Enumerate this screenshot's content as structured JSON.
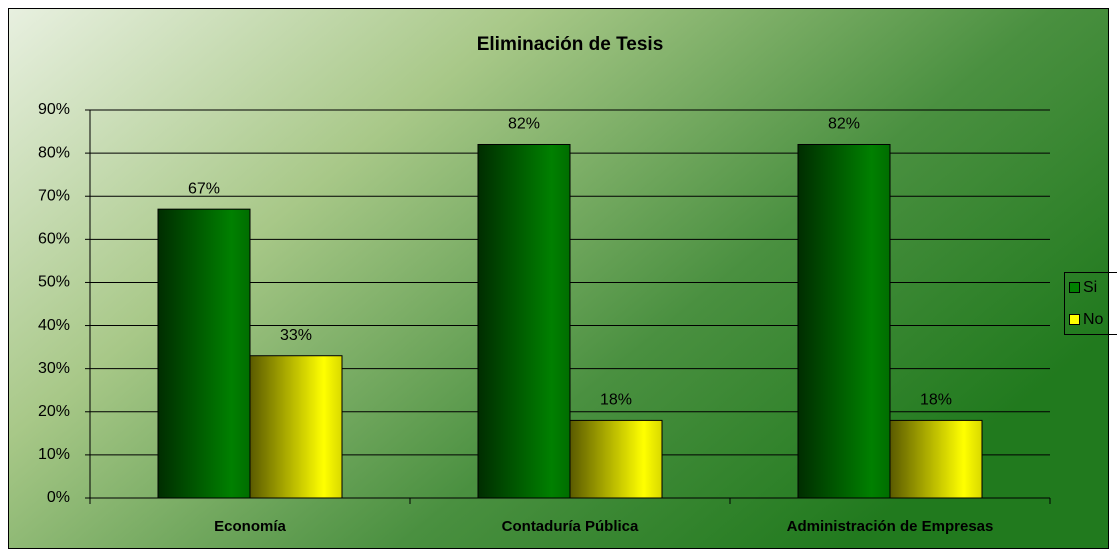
{
  "chart_data": {
    "type": "bar",
    "title": "Eliminación de Tesis",
    "categories": [
      "Economía",
      "Contaduría Pública",
      "Administración de Empresas"
    ],
    "series": [
      {
        "name": "Si",
        "color": "#008000",
        "values": [
          67,
          82,
          82
        ],
        "value_labels": [
          "67%",
          "82%",
          "82%"
        ]
      },
      {
        "name": "No",
        "color": "#ffff00",
        "values": [
          33,
          18,
          18
        ],
        "value_labels": [
          "33%",
          "18%",
          "18%"
        ]
      }
    ],
    "ylim": [
      0,
      90
    ],
    "yticks": [
      {
        "value": 0,
        "label": "0%"
      },
      {
        "value": 10,
        "label": "10%"
      },
      {
        "value": 20,
        "label": "20%"
      },
      {
        "value": 30,
        "label": "30%"
      },
      {
        "value": 40,
        "label": "40%"
      },
      {
        "value": 50,
        "label": "50%"
      },
      {
        "value": 60,
        "label": "60%"
      },
      {
        "value": 70,
        "label": "70%"
      },
      {
        "value": 80,
        "label": "80%"
      },
      {
        "value": 90,
        "label": "90%"
      }
    ],
    "grid": true,
    "legend": "right"
  }
}
